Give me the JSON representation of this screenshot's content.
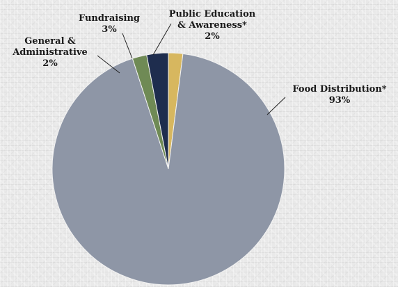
{
  "chart_data": {
    "type": "pie",
    "title": "",
    "slices": [
      {
        "label": [
          "Food Distribution*"
        ],
        "value": 93,
        "value_label": "93%",
        "color": "#8e96a6"
      },
      {
        "label": [
          "General &",
          "Administrative"
        ],
        "value": 2,
        "value_label": "2%",
        "color": "#6f8a55"
      },
      {
        "label": [
          "Fundraising"
        ],
        "value": 3,
        "value_label": "3%",
        "color": "#1e2d4e"
      },
      {
        "label": [
          "Public Education",
          "& Awareness*"
        ],
        "value": 2,
        "value_label": "2%",
        "color": "#d7b75f"
      }
    ],
    "legend": "none",
    "data_labels": "outside with leader lines"
  }
}
